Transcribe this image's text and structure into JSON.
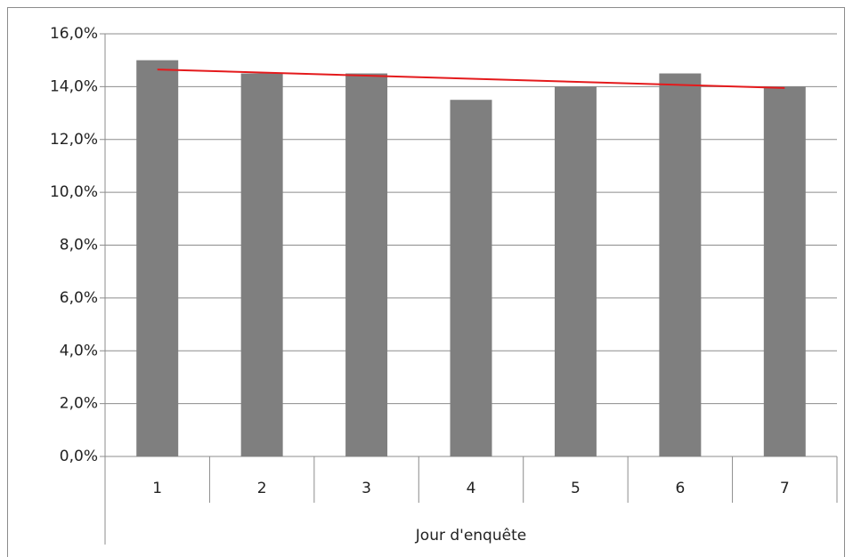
{
  "chart_data": {
    "type": "bar",
    "x_label": "Jour d'enquête",
    "categories": [
      "1",
      "2",
      "3",
      "4",
      "5",
      "6",
      "7"
    ],
    "values": [
      15.0,
      14.5,
      14.5,
      13.5,
      14.0,
      14.5,
      14.0
    ],
    "color": "#7f7f7f",
    "trendline": {
      "color": "#e41a1c",
      "start": 14.65,
      "end": 13.95
    },
    "ylim": [
      0,
      16
    ],
    "yticks": [
      {
        "value": 0,
        "label": "0,0%"
      },
      {
        "value": 2,
        "label": "2,0%"
      },
      {
        "value": 4,
        "label": "4,0%"
      },
      {
        "value": 6,
        "label": "6,0%"
      },
      {
        "value": 8,
        "label": "8,0%"
      },
      {
        "value": 10,
        "label": "10,0%"
      },
      {
        "value": 12,
        "label": "12,0%"
      },
      {
        "value": 14,
        "label": "14,0%"
      },
      {
        "value": 16,
        "label": "16,0%"
      }
    ],
    "grid": true
  }
}
